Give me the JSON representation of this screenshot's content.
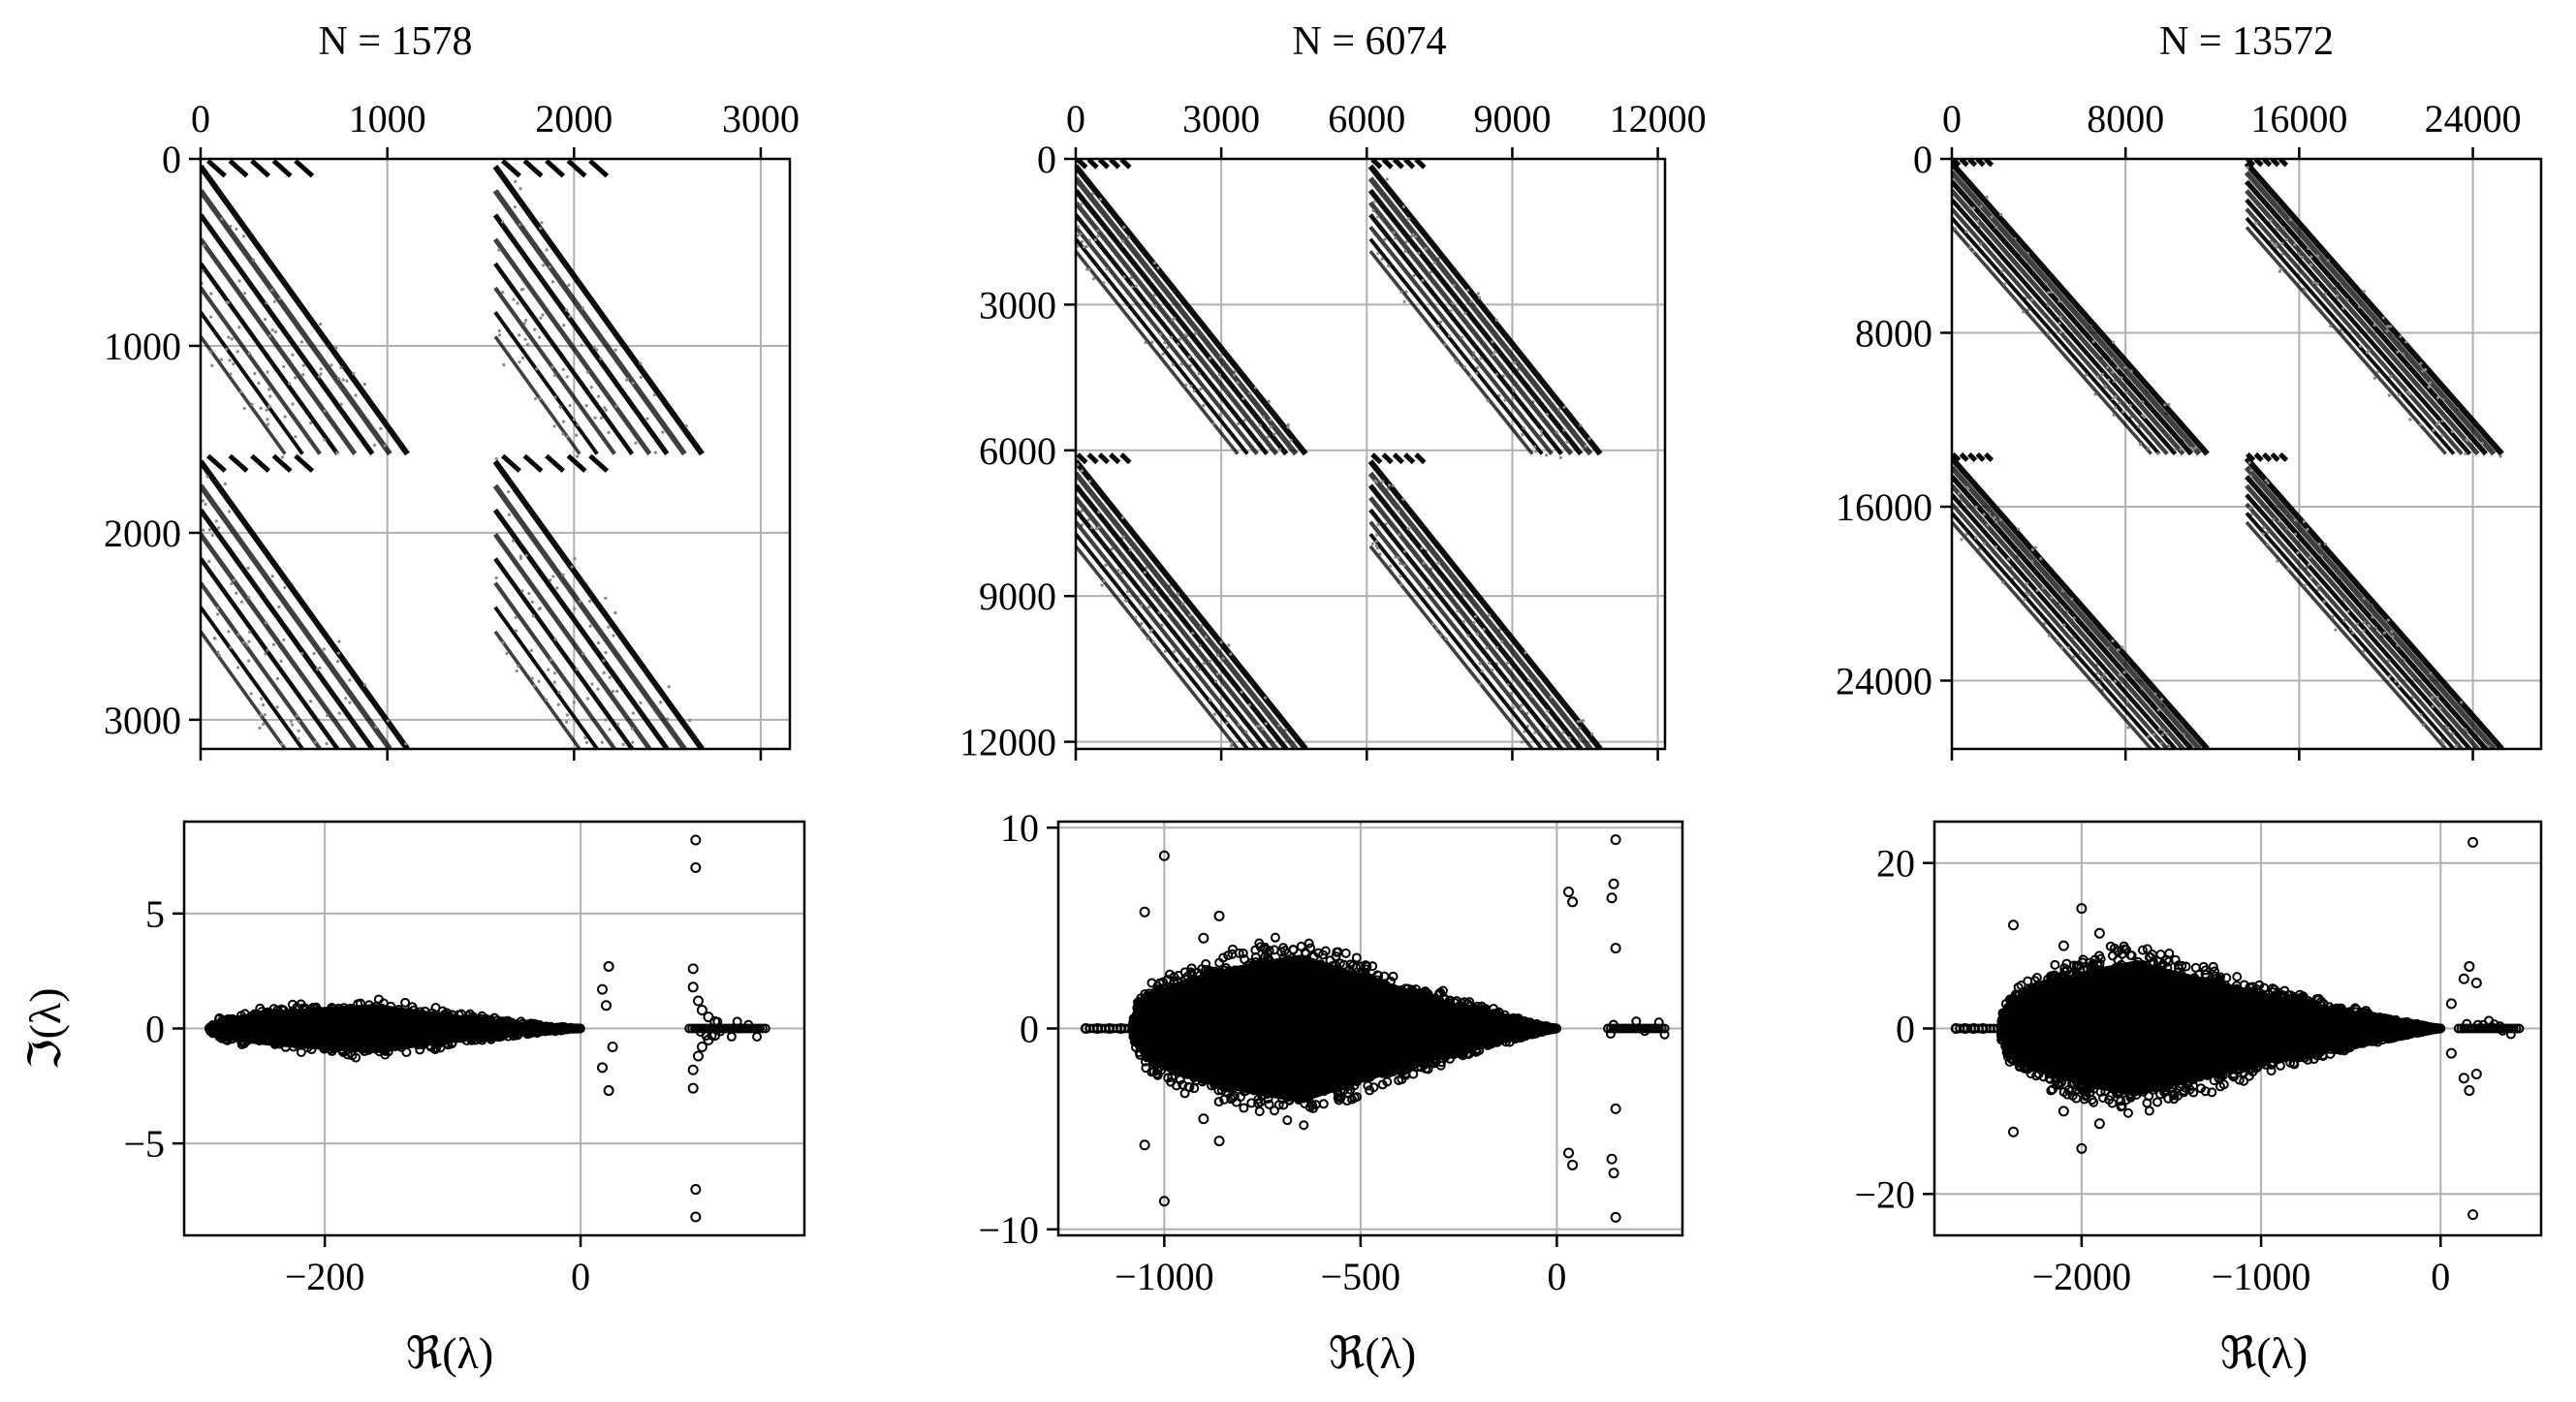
{
  "figure": {
    "chart_data": [
      {
        "type": "heatmap",
        "kind": "sparsity-pattern",
        "title": "N = 1578",
        "n": 1578,
        "matrix_size": 3156,
        "x_ticks": [
          "0",
          "1000",
          "2000",
          "3000"
        ],
        "y_ticks": [
          "0",
          "1000",
          "2000",
          "3000"
        ],
        "x_tick_values": [
          0,
          1000,
          2000,
          3000
        ],
        "y_tick_values": [
          0,
          1000,
          2000,
          3000
        ],
        "xlim": [
          0,
          3156
        ],
        "ylim": [
          3156,
          0
        ],
        "x_ticks_position": "top",
        "grid": true,
        "bands_per_block": 8,
        "band_spacing": 130,
        "first_band_offset": 40,
        "band_slope": 0.72,
        "cutoff_offset": 680,
        "fill_color": "#000000"
      },
      {
        "type": "heatmap",
        "kind": "sparsity-pattern",
        "title": "N = 6074",
        "n": 6074,
        "matrix_size": 12148,
        "x_ticks": [
          "0",
          "3000",
          "6000",
          "9000",
          "12000"
        ],
        "y_ticks": [
          "0",
          "3000",
          "6000",
          "9000",
          "12000"
        ],
        "x_tick_values": [
          0,
          3000,
          6000,
          9000,
          12000
        ],
        "y_tick_values": [
          0,
          3000,
          6000,
          9000,
          12000
        ],
        "xlim": [
          0,
          12148
        ],
        "ylim": [
          12148,
          0
        ],
        "x_ticks_position": "top",
        "grid": true,
        "bands_per_block": 8,
        "band_spacing": 250,
        "first_band_offset": 150,
        "band_slope": 0.8,
        "cutoff_offset": 1400,
        "fill_color": "#000000"
      },
      {
        "type": "heatmap",
        "kind": "sparsity-pattern",
        "title": "N = 13572",
        "n": 13572,
        "matrix_size": 27144,
        "x_ticks": [
          "0",
          "8000",
          "16000",
          "24000"
        ],
        "y_ticks": [
          "0",
          "8000",
          "16000",
          "24000"
        ],
        "x_tick_values": [
          0,
          8000,
          16000,
          24000
        ],
        "y_tick_values": [
          0,
          8000,
          16000,
          24000
        ],
        "xlim": [
          0,
          27144
        ],
        "ylim": [
          27144,
          0
        ],
        "x_ticks_position": "top",
        "grid": true,
        "bands_per_block": 8,
        "band_spacing": 420,
        "first_band_offset": 200,
        "band_slope": 0.88,
        "cutoff_offset": 2300,
        "fill_color": "#000000"
      },
      {
        "type": "scatter",
        "kind": "eigenvalue-spectrum",
        "xlabel": "ℜ(λ)",
        "ylabel": "ℑ(λ)",
        "x_ticks": [
          "−200",
          "0"
        ],
        "x_tick_values": [
          -200,
          0
        ],
        "y_ticks": [
          "−5",
          "0",
          "5"
        ],
        "y_tick_values": [
          -5,
          0,
          5
        ],
        "xlim": [
          -310,
          175
        ],
        "ylim": [
          -9,
          9
        ],
        "grid": true,
        "marker": "open-circle",
        "bulk": {
          "x_min": -290,
          "x_max": 0,
          "peak_x": -160,
          "peak_half_height": 1.3,
          "count": 900
        },
        "isolated_points": [
          [
            -290,
            0
          ],
          [
            -280,
            0
          ],
          [
            -270,
            0
          ],
          [
            -260,
            0
          ],
          [
            -250,
            0
          ],
          [
            -240,
            0
          ],
          [
            17,
            1.7
          ],
          [
            17,
            -1.7
          ],
          [
            22,
            2.7
          ],
          [
            22,
            -2.7
          ],
          [
            20,
            1.0
          ],
          [
            25,
            -0.8
          ],
          [
            90,
            8.2
          ],
          [
            90,
            7.0
          ],
          [
            90,
            -7.0
          ],
          [
            90,
            -8.2
          ],
          [
            88,
            2.6
          ],
          [
            88,
            -2.6
          ],
          [
            88,
            1.8
          ],
          [
            88,
            -1.8
          ],
          [
            92,
            1.2
          ],
          [
            92,
            -1.2
          ],
          [
            95,
            0.8
          ],
          [
            95,
            -0.8
          ],
          [
            100,
            0.5
          ],
          [
            100,
            -0.5
          ],
          [
            105,
            0.3
          ],
          [
            105,
            -0.3
          ]
        ],
        "tail": {
          "x_min": 85,
          "x_max": 145
        }
      },
      {
        "type": "scatter",
        "kind": "eigenvalue-spectrum",
        "xlabel": "ℜ(λ)",
        "ylabel": "",
        "x_ticks": [
          "−1000",
          "−500",
          "0"
        ],
        "x_tick_values": [
          -1000,
          -500,
          0
        ],
        "y_ticks": [
          "−10",
          "0",
          "10"
        ],
        "y_tick_values": [
          -10,
          0,
          10
        ],
        "xlim": [
          -1270,
          320
        ],
        "ylim": [
          -10.3,
          10.3
        ],
        "grid": true,
        "marker": "open-circle",
        "bulk": {
          "x_min": -1080,
          "x_max": 0,
          "peak_x": -650,
          "peak_half_height": 4.5,
          "count": 3600
        },
        "isolated_points": [
          [
            -1200,
            0
          ],
          [
            -1170,
            0
          ],
          [
            -1140,
            0
          ],
          [
            -1110,
            0
          ],
          [
            -1000,
            8.6
          ],
          [
            -1000,
            -8.6
          ],
          [
            -1050,
            5.8
          ],
          [
            -1050,
            -5.8
          ],
          [
            -860,
            5.6
          ],
          [
            -860,
            -5.6
          ],
          [
            -900,
            4.5
          ],
          [
            -900,
            -4.5
          ],
          [
            30,
            6.8
          ],
          [
            30,
            -6.2
          ],
          [
            40,
            6.3
          ],
          [
            40,
            -6.8
          ],
          [
            150,
            9.4
          ],
          [
            150,
            -9.4
          ],
          [
            145,
            7.2
          ],
          [
            145,
            -7.2
          ],
          [
            140,
            6.5
          ],
          [
            140,
            -6.5
          ],
          [
            150,
            4.0
          ],
          [
            150,
            -4.0
          ]
        ],
        "tail": {
          "x_min": 130,
          "x_max": 280
        }
      },
      {
        "type": "scatter",
        "kind": "eigenvalue-spectrum",
        "xlabel": "ℜ(λ)",
        "ylabel": "",
        "x_ticks": [
          "−2000",
          "−1000",
          "0"
        ],
        "x_tick_values": [
          -2000,
          -1000,
          0
        ],
        "y_ticks": [
          "−20",
          "0",
          "20"
        ],
        "y_tick_values": [
          -20,
          0,
          20
        ],
        "xlim": [
          -2820,
          560
        ],
        "ylim": [
          -25,
          25
        ],
        "grid": true,
        "marker": "open-circle",
        "bulk": {
          "x_min": -2450,
          "x_max": 0,
          "peak_x": -1700,
          "peak_half_height": 10,
          "count": 4200
        },
        "isolated_points": [
          [
            -2700,
            0
          ],
          [
            -2650,
            0
          ],
          [
            -2600,
            0
          ],
          [
            -2550,
            0
          ],
          [
            -2000,
            14.5
          ],
          [
            -2000,
            -14.5
          ],
          [
            -2380,
            12.5
          ],
          [
            -2380,
            -12.5
          ],
          [
            -1900,
            11.5
          ],
          [
            -1900,
            -11.5
          ],
          [
            -2100,
            10.0
          ],
          [
            -2100,
            -10.0
          ],
          [
            180,
            22.5
          ],
          [
            180,
            -22.5
          ],
          [
            160,
            7.5
          ],
          [
            160,
            -7.5
          ],
          [
            200,
            5.5
          ],
          [
            200,
            -5.5
          ],
          [
            130,
            6.0
          ],
          [
            130,
            -6.0
          ],
          [
            60,
            3.0
          ],
          [
            60,
            -3.0
          ]
        ],
        "tail": {
          "x_min": 100,
          "x_max": 450
        }
      }
    ]
  }
}
